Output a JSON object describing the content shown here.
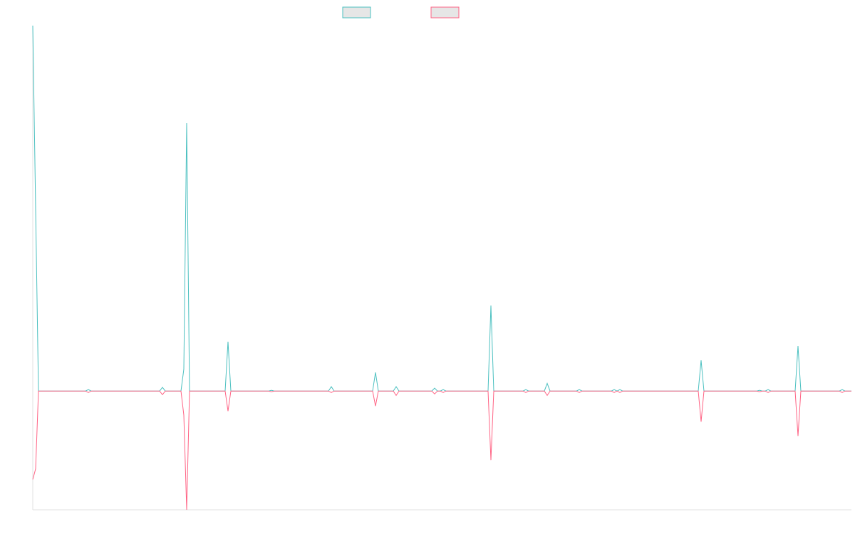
{
  "chart_data": {
    "type": "line",
    "x": [
      0,
      1,
      2,
      18.5,
      19.5,
      20.5,
      44.5,
      45.5,
      46.5,
      52,
      53,
      54,
      55,
      67.5,
      68.5,
      69.5,
      82.75,
      83.75,
      84.75,
      103.75,
      104.75,
      105.75,
      119.25,
      120.25,
      121.25,
      126.5,
      127.5,
      128.5,
      140,
      141,
      142,
      143,
      144,
      145,
      159.75,
      160.75,
      161.75,
      172,
      173,
      174,
      179.5,
      180.5,
      181.5,
      190.75,
      191.75,
      192.75,
      203,
      204,
      205,
      206,
      207,
      233.5,
      234.5,
      235.5,
      254,
      255,
      256,
      257,
      258,
      259,
      267.5,
      268.5,
      269.5,
      283,
      284,
      285,
      287.25
    ],
    "series": [
      {
        "color": "#4bc0c0",
        "values": [
          100,
          50,
          0,
          0,
          0.4,
          0,
          0,
          1,
          0,
          0,
          6,
          73.3,
          0,
          0,
          13.5,
          0,
          0,
          0.2,
          0,
          0,
          1.2,
          0,
          0,
          5.1,
          0,
          0,
          1.2,
          0,
          0,
          0.8,
          0,
          0,
          0.4,
          0,
          0,
          23.4,
          0,
          0,
          0.4,
          0,
          0,
          2.1,
          0,
          0,
          0.4,
          0,
          0,
          0.4,
          0,
          0.4,
          0,
          0,
          8.4,
          0,
          0,
          0.2,
          0,
          0,
          0.4,
          0,
          0,
          12.3,
          0,
          0,
          0.4,
          0,
          0
        ]
      },
      {
        "color": "#ff6384",
        "values": [
          -24.2,
          -21.3,
          0,
          0,
          -0.4,
          0,
          0,
          -1,
          0,
          0,
          -6.6,
          -32.5,
          0,
          0,
          -5.5,
          0,
          0,
          -0.2,
          0,
          0,
          -0.4,
          0,
          0,
          -4.1,
          0,
          0,
          -1.2,
          0,
          0,
          -0.8,
          0,
          0,
          -0.4,
          0,
          0,
          -18.9,
          0,
          0,
          -0.4,
          0,
          0,
          -1.2,
          0,
          0,
          -0.4,
          0,
          0,
          -0.4,
          0,
          -0.4,
          0,
          0,
          -8.4,
          0,
          0,
          -0.2,
          0,
          0,
          -0.4,
          0,
          0,
          -12.3,
          0,
          0,
          -0.4,
          0,
          0
        ]
      }
    ],
    "xlim": [
      0,
      287.25
    ],
    "ylim": [
      -32.5,
      100
    ]
  }
}
